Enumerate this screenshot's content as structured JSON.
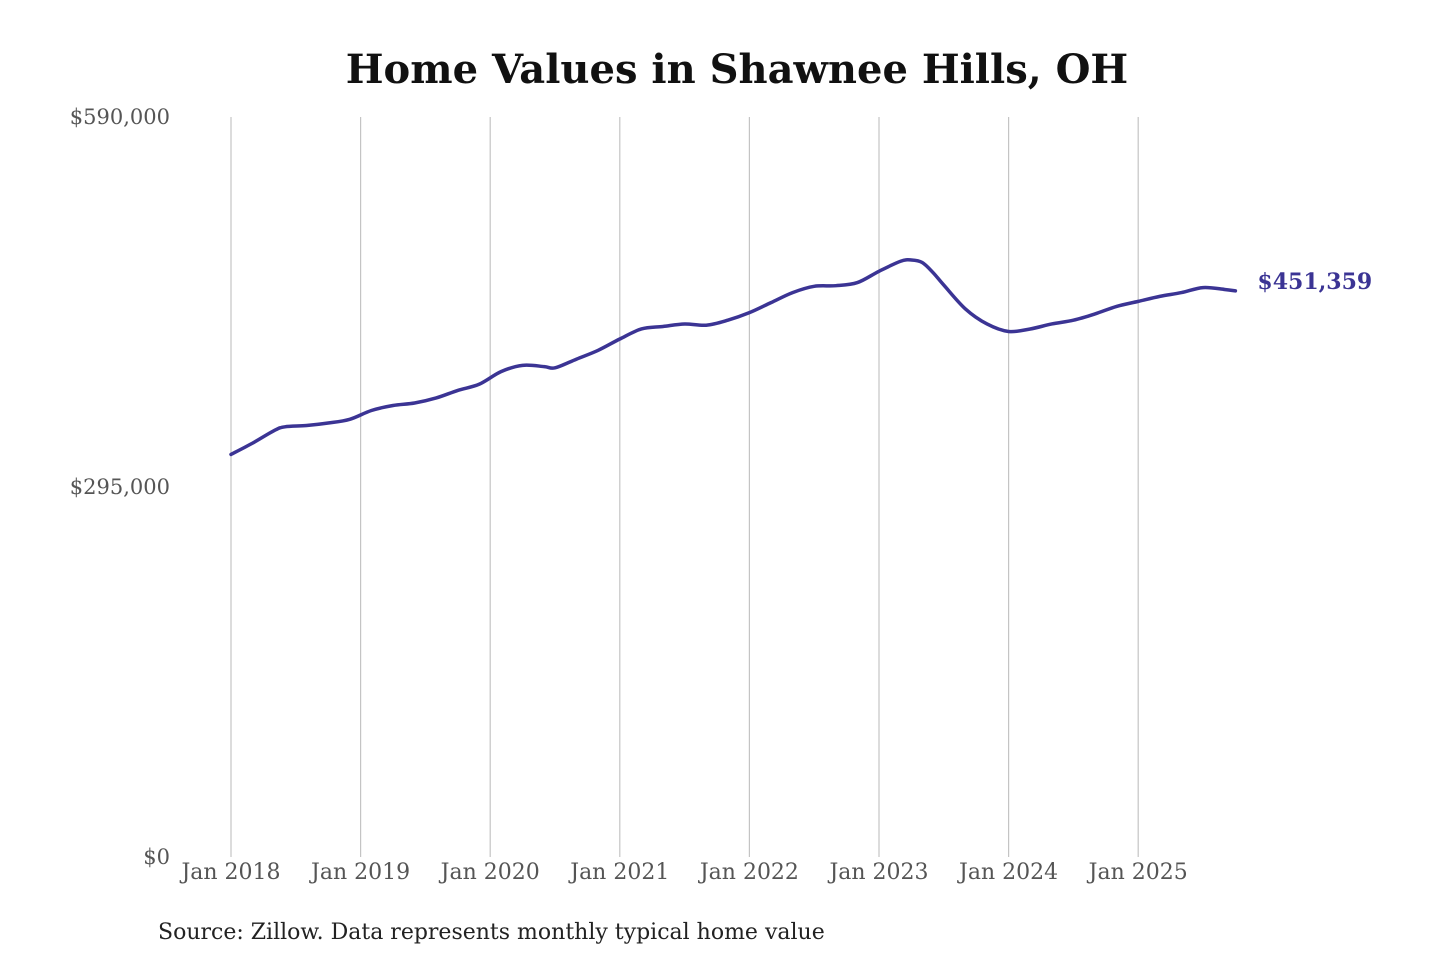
{
  "chart_data": {
    "type": "line",
    "title": "Home Values in Shawnee Hills, OH",
    "xlabel": "",
    "ylabel": "",
    "ylim": [
      0,
      590000
    ],
    "yticks": [
      {
        "value": 0,
        "label": "$0"
      },
      {
        "value": 295000,
        "label": "$295,000"
      },
      {
        "value": 590000,
        "label": "$590,000"
      }
    ],
    "xticks": [
      {
        "value": "2018-01",
        "label": "Jan 2018"
      },
      {
        "value": "2019-01",
        "label": "Jan 2019"
      },
      {
        "value": "2020-01",
        "label": "Jan 2020"
      },
      {
        "value": "2021-01",
        "label": "Jan 2021"
      },
      {
        "value": "2022-01",
        "label": "Jan 2022"
      },
      {
        "value": "2023-01",
        "label": "Jan 2023"
      },
      {
        "value": "2024-01",
        "label": "Jan 2024"
      },
      {
        "value": "2025-01",
        "label": "Jan 2025"
      }
    ],
    "grid": "vertical",
    "line_color": "#3b3494",
    "series": [
      {
        "points": [
          [
            "2018-01",
            321000
          ],
          [
            "2018-03",
            330000
          ],
          [
            "2018-05",
            340000
          ],
          [
            "2018-06",
            343000
          ],
          [
            "2018-08",
            344000
          ],
          [
            "2018-10",
            346000
          ],
          [
            "2018-12",
            349000
          ],
          [
            "2019-02",
            356000
          ],
          [
            "2019-04",
            360000
          ],
          [
            "2019-06",
            362000
          ],
          [
            "2019-08",
            366000
          ],
          [
            "2019-10",
            372000
          ],
          [
            "2019-12",
            377000
          ],
          [
            "2020-02",
            387000
          ],
          [
            "2020-04",
            392000
          ],
          [
            "2020-06",
            391000
          ],
          [
            "2020-07",
            390000
          ],
          [
            "2020-09",
            397000
          ],
          [
            "2020-11",
            404000
          ],
          [
            "2021-01",
            413000
          ],
          [
            "2021-03",
            421000
          ],
          [
            "2021-05",
            423000
          ],
          [
            "2021-07",
            425000
          ],
          [
            "2021-09",
            424000
          ],
          [
            "2021-11",
            428000
          ],
          [
            "2022-01",
            434000
          ],
          [
            "2022-03",
            442000
          ],
          [
            "2022-05",
            450000
          ],
          [
            "2022-07",
            455000
          ],
          [
            "2022-09",
            455500
          ],
          [
            "2022-11",
            458000
          ],
          [
            "2023-01",
            467000
          ],
          [
            "2023-03",
            475000
          ],
          [
            "2023-04",
            476000
          ],
          [
            "2023-05",
            474000
          ],
          [
            "2023-06",
            466000
          ],
          [
            "2023-07",
            456000
          ],
          [
            "2023-09",
            437000
          ],
          [
            "2023-11",
            425000
          ],
          [
            "2024-01",
            419000
          ],
          [
            "2024-03",
            421000
          ],
          [
            "2024-05",
            425000
          ],
          [
            "2024-07",
            428000
          ],
          [
            "2024-09",
            433000
          ],
          [
            "2024-11",
            439000
          ],
          [
            "2025-01",
            443000
          ],
          [
            "2025-03",
            447000
          ],
          [
            "2025-05",
            450000
          ],
          [
            "2025-07",
            454000
          ],
          [
            "2025-09",
            452500
          ],
          [
            "2025-10",
            451359
          ]
        ]
      }
    ],
    "end_label": "$451,359",
    "source": "Source: Zillow. Data represents monthly typical home value"
  }
}
